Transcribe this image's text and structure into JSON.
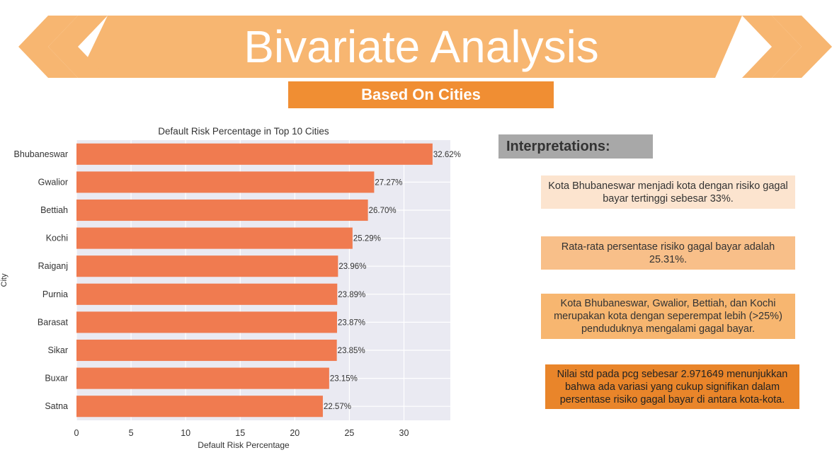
{
  "header": {
    "title": "Bivariate Analysis",
    "subtitle": "Based On Cities"
  },
  "colors": {
    "banner": "#f7b671",
    "subtitle_bg": "#f08e33",
    "bar": "#f07b50",
    "plot_bg": "#eaeaf2"
  },
  "interpretations": {
    "header": "Interpretations:",
    "items": [
      "Kota Bhubaneswar menjadi kota dengan risiko gagal bayar tertinggi sebesar 33%.",
      "Rata-rata persentase risiko gagal bayar adalah 25.31%.",
      "Kota Bhubaneswar, Gwalior, Bettiah, dan Kochi merupakan kota dengan seperempat lebih (>25%) penduduknya mengalami gagal bayar.",
      "Nilai std pada pcg sebesar 2.971649 menunjukkan bahwa ada variasi yang cukup signifikan dalam persentase risiko gagal bayar di antara kota-kota."
    ]
  },
  "chart_data": {
    "type": "bar",
    "orientation": "horizontal",
    "title": "Default Risk Percentage in Top 10 Cities",
    "xlabel": "Default Risk Percentage",
    "ylabel": "City",
    "categories": [
      "Bhubaneswar",
      "Gwalior",
      "Bettiah",
      "Kochi",
      "Raiganj",
      "Purnia",
      "Barasat",
      "Sikar",
      "Buxar",
      "Satna"
    ],
    "values": [
      32.62,
      27.27,
      26.7,
      25.29,
      23.96,
      23.89,
      23.87,
      23.85,
      23.15,
      22.57
    ],
    "data_labels": [
      "32.62%",
      "27.27%",
      "26.70%",
      "25.29%",
      "23.96%",
      "23.89%",
      "23.87%",
      "23.85%",
      "23.15%",
      "22.57%"
    ],
    "xticks": [
      "0",
      "5",
      "10",
      "15",
      "20",
      "25",
      "30"
    ],
    "xlim": [
      0,
      34.25
    ],
    "grid": true,
    "legend": "none"
  }
}
